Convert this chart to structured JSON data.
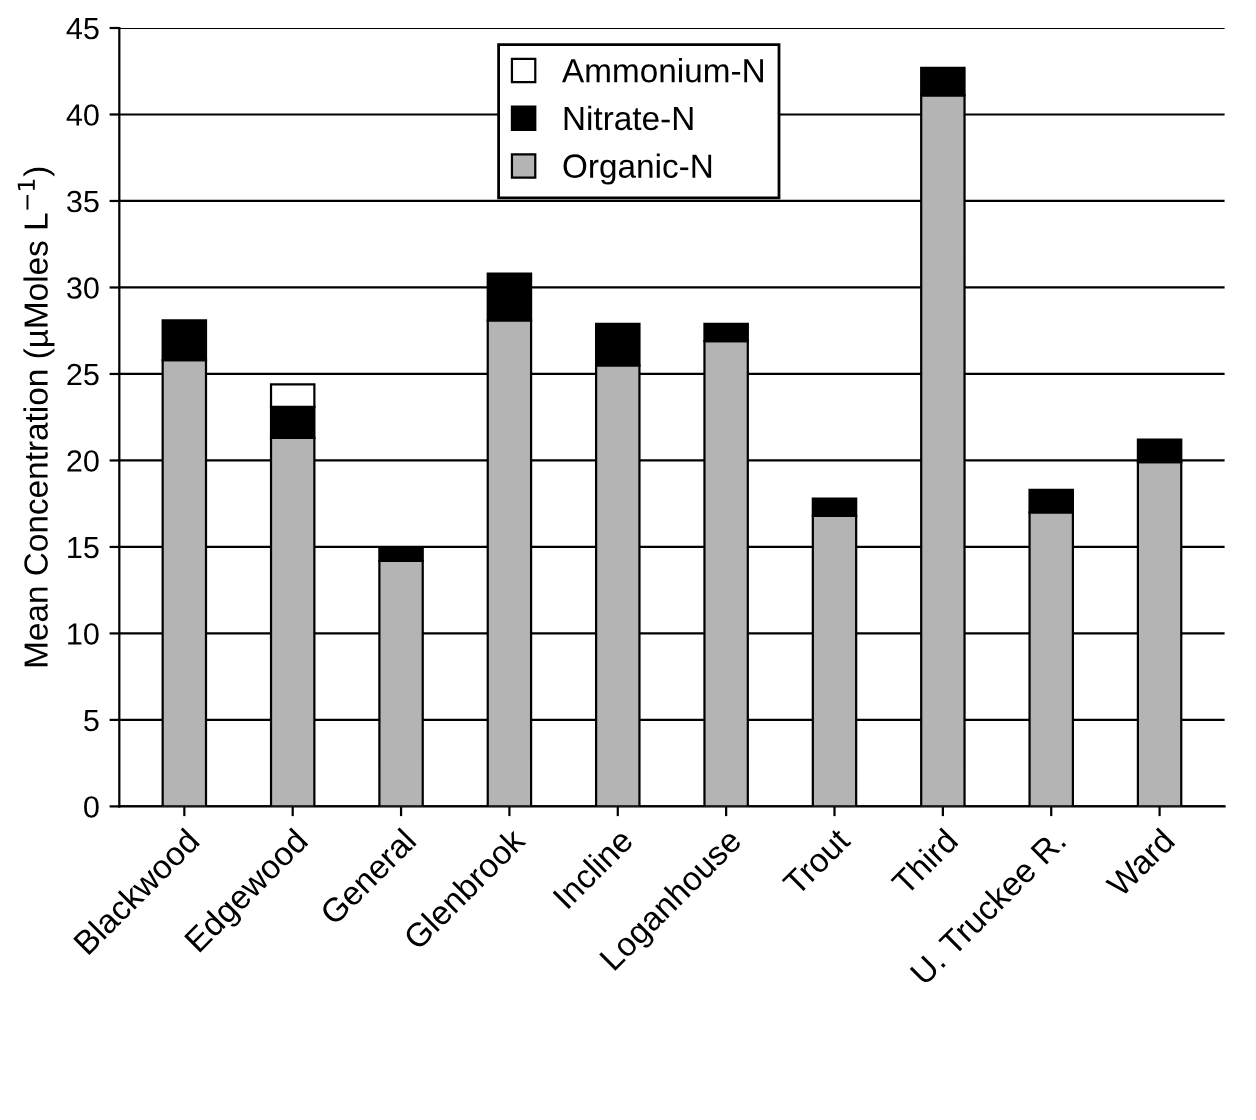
{
  "chart_data": {
    "type": "bar",
    "ylabel": "Mean Concentration (µMoles L$^{−1}$)",
    "categories": [
      "Blackwood",
      "Edgewood",
      "General",
      "Glenbrook",
      "Incline",
      "Loganhouse",
      "Trout",
      "Third",
      "U. Truckee R.",
      "Ward"
    ],
    "stacked": true,
    "series": [
      {
        "name": "Organic-N",
        "color": "#b4b4b4",
        "values": [
          25.8,
          21.3,
          14.2,
          28.1,
          25.5,
          26.9,
          16.8,
          41.1,
          17.0,
          19.9
        ]
      },
      {
        "name": "Nitrate-N",
        "color": "#000000",
        "values": [
          2.3,
          1.8,
          0.7,
          2.7,
          2.4,
          1.0,
          1.0,
          1.6,
          1.3,
          1.3
        ]
      },
      {
        "name": "Ammonium-N",
        "color": "#ffffff",
        "values": [
          null,
          1.3,
          null,
          null,
          null,
          null,
          null,
          null,
          null,
          null
        ]
      }
    ],
    "ylim": [
      0,
      45
    ],
    "yticks": [
      0,
      5,
      10,
      15,
      20,
      25,
      30,
      35,
      40,
      45
    ],
    "grid": "y",
    "legend": "top"
  }
}
